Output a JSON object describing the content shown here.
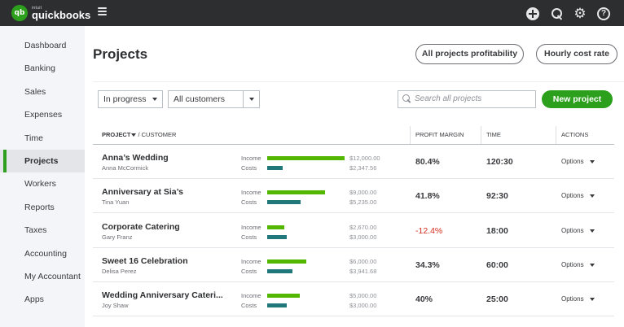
{
  "brand": {
    "small": "intuit",
    "name": "quickbooks",
    "mark": "qb"
  },
  "topbar": {
    "icons": [
      "plus-icon",
      "search-icon",
      "gear-icon",
      "help-icon"
    ],
    "help_glyph": "?"
  },
  "sidebar": {
    "items": [
      {
        "label": "Dashboard",
        "active": false
      },
      {
        "label": "Banking",
        "active": false
      },
      {
        "label": "Sales",
        "active": false
      },
      {
        "label": "Expenses",
        "active": false
      },
      {
        "label": "Time",
        "active": false
      },
      {
        "label": "Projects",
        "active": true
      },
      {
        "label": "Workers",
        "active": false
      },
      {
        "label": "Reports",
        "active": false
      },
      {
        "label": "Taxes",
        "active": false
      },
      {
        "label": "Accounting",
        "active": false
      },
      {
        "label": "My Accountant",
        "active": false
      },
      {
        "label": "Apps",
        "active": false
      }
    ]
  },
  "page": {
    "title": "Projects",
    "profitability_button": "All projects profitability",
    "hourly_button": "Hourly cost rate"
  },
  "filters": {
    "status": "In progress",
    "customer": "All customers",
    "search_placeholder": "Search all projects",
    "new_project_button": "New project"
  },
  "table": {
    "headers": {
      "project": "PROJECT",
      "customer": "/ CUSTOMER",
      "margin": "PROFIT MARGIN",
      "time": "TIME",
      "actions": "ACTIONS"
    },
    "income_label": "Income",
    "costs_label": "Costs",
    "options_label": "Options",
    "bar_max": 12000,
    "rows": [
      {
        "project": "Anna’s Wedding",
        "customer": "Anna McCormick",
        "income": "$12,000.00",
        "income_value": 12000,
        "costs": "$2,347.56",
        "costs_value": 2347.56,
        "margin": "80.4%",
        "negative": false,
        "time": "120:30"
      },
      {
        "project": "Anniversary at Sia’s",
        "customer": "Tina Yuan",
        "income": "$9,000.00",
        "income_value": 9000,
        "costs": "$5,235.00",
        "costs_value": 5235,
        "margin": "41.8%",
        "negative": false,
        "time": "92:30"
      },
      {
        "project": "Corporate Catering",
        "customer": "Gary Franz",
        "income": "$2,670.00",
        "income_value": 2670,
        "costs": "$3,000.00",
        "costs_value": 3000,
        "margin": "-12.4%",
        "negative": true,
        "time": "18:00"
      },
      {
        "project": "Sweet 16 Celebration",
        "customer": "Delisa Perez",
        "income": "$6,000.00",
        "income_value": 6000,
        "costs": "$3,941.68",
        "costs_value": 3941.68,
        "margin": "34.3%",
        "negative": false,
        "time": "60:00"
      },
      {
        "project": "Wedding Anniversary Cateri...",
        "customer": "Joy Shaw",
        "income": "$5,000.00",
        "income_value": 5000,
        "costs": "$3,000.00",
        "costs_value": 3000,
        "margin": "40%",
        "negative": false,
        "time": "25:00"
      }
    ]
  }
}
